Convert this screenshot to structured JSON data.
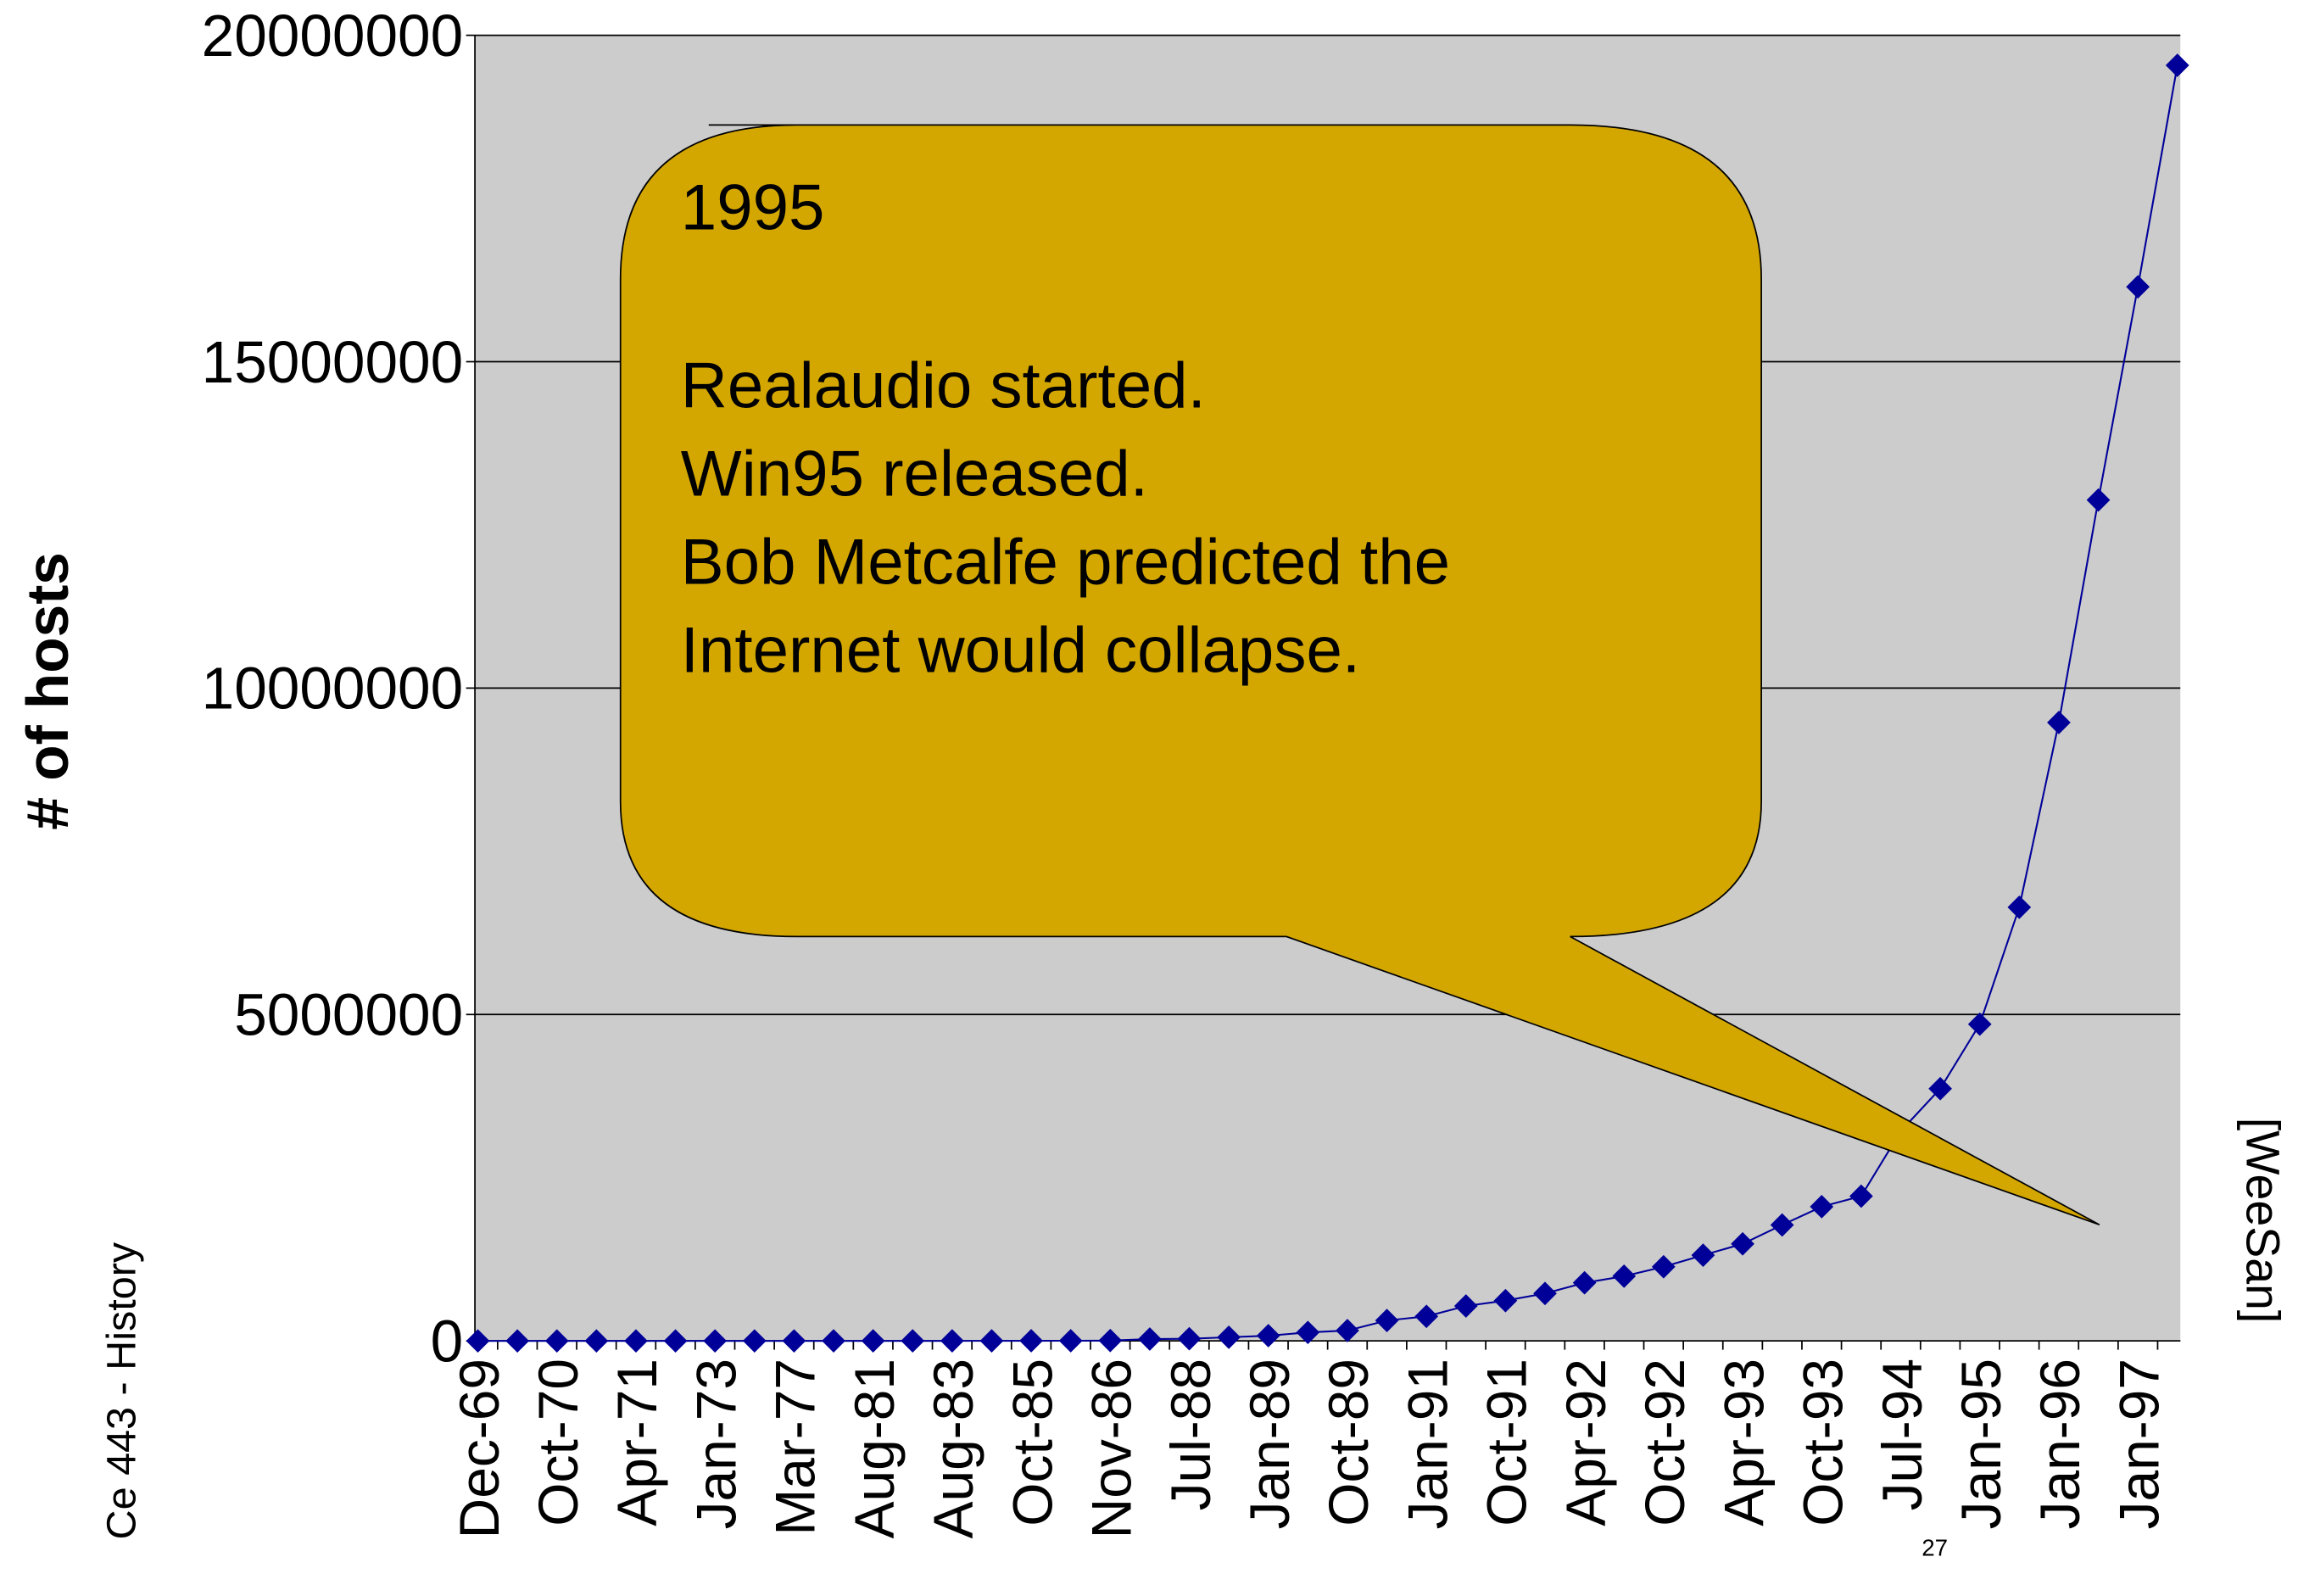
{
  "chart_data": {
    "type": "line",
    "y_label": "# of hosts",
    "footer_left": "Ce 443 - History",
    "footer_right": "[WeeSan]",
    "page_number": "27",
    "annotation": {
      "title": "1995",
      "lines": [
        "Realaudio started.",
        "Win95 released.",
        "Bob Metcalfe predicted the",
        "Internet would collapse."
      ]
    },
    "categories": [
      "Dec-69",
      null,
      "Oct-70",
      null,
      "Apr-71",
      null,
      "Jan-73",
      null,
      "Mar-77",
      null,
      "Aug-81",
      null,
      "Aug-83",
      null,
      "Oct-85",
      null,
      "Nov-86",
      null,
      "Jul-88",
      null,
      "Jan-89",
      null,
      "Oct-89",
      null,
      "Jan-91",
      null,
      "Oct-91",
      null,
      "Apr-92",
      null,
      "Oct-92",
      null,
      "Apr-93",
      null,
      "Oct-93",
      null,
      "Jul-94",
      null,
      "Jan-95",
      null,
      "Jan-96",
      null,
      "Jan-97",
      null
    ],
    "series": [
      {
        "name": "hosts",
        "color": "#000099",
        "values": [
          4,
          4,
          13,
          13,
          23,
          23,
          35,
          111,
          111,
          213,
          213,
          235,
          562,
          1024,
          1961,
          2308,
          5089,
          28174,
          33000,
          56000,
          80000,
          130000,
          159000,
          313000,
          376000,
          535000,
          617000,
          727000,
          890000,
          992000,
          1136000,
          1313000,
          1486000,
          1776000,
          2056000,
          2217000,
          3212000,
          3864000,
          4852000,
          6642000,
          9472000,
          12881000,
          16146000,
          19540000
        ]
      }
    ],
    "ylim": [
      0,
      20000000
    ],
    "yticks": [
      0,
      5000000,
      10000000,
      15000000,
      20000000
    ],
    "grid": true,
    "plot_background": "#cccccc",
    "annotation_color": "#d4a700"
  }
}
